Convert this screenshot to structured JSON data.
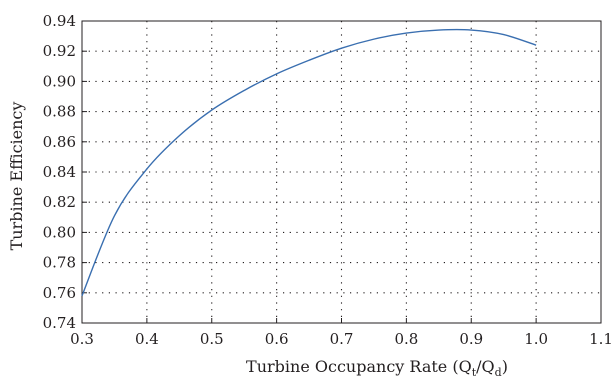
{
  "chart_data": {
    "type": "line",
    "title": "",
    "xlabel_main": "Turbine Occupancy Rate (Q",
    "xlabel_sub1": "t",
    "xlabel_mid": "/Q",
    "xlabel_sub2": "d",
    "xlabel_end": ")",
    "ylabel": "Turbine Efficiency",
    "xlim": [
      0.3,
      1.1
    ],
    "ylim": [
      0.74,
      0.94
    ],
    "x_ticks": [
      "0.3",
      "0.4",
      "0.5",
      "0.6",
      "0.7",
      "0.8",
      "0.9",
      "1.0",
      "1.1"
    ],
    "y_ticks": [
      "0.74",
      "0.76",
      "0.78",
      "0.80",
      "0.82",
      "0.84",
      "0.86",
      "0.88",
      "0.90",
      "0.92",
      "0.94"
    ],
    "grid": "dotted",
    "line_color": "#3a6fb0",
    "series": [
      {
        "x": [
          0.3,
          0.35,
          0.4,
          0.45,
          0.5,
          0.55,
          0.6,
          0.65,
          0.7,
          0.75,
          0.8,
          0.85,
          0.9,
          0.95,
          1.0
        ],
        "y": [
          0.758,
          0.811,
          0.842,
          0.864,
          0.881,
          0.894,
          0.905,
          0.914,
          0.922,
          0.928,
          0.932,
          0.934,
          0.934,
          0.931,
          0.924
        ]
      }
    ]
  }
}
